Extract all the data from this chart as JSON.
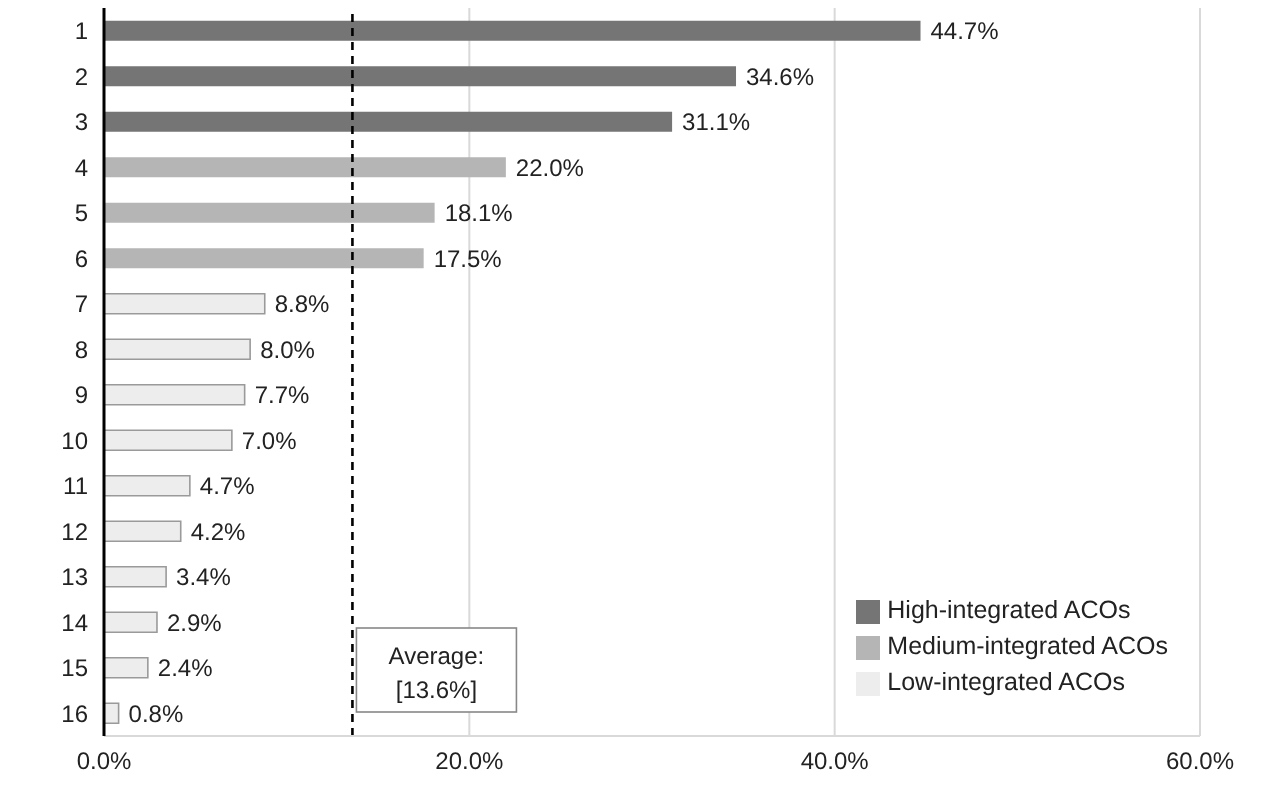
{
  "chart_data": {
    "type": "bar",
    "orientation": "horizontal",
    "stacked": true,
    "categories": [
      "1",
      "2",
      "3",
      "4",
      "5",
      "6",
      "7",
      "8",
      "9",
      "10",
      "11",
      "12",
      "13",
      "14",
      "15",
      "16"
    ],
    "series": [
      {
        "name": "High-integrated ACOs",
        "color": "#757575",
        "values": [
          44.7,
          34.6,
          31.1,
          null,
          null,
          null,
          null,
          null,
          null,
          null,
          null,
          null,
          null,
          null,
          null,
          null
        ],
        "value_labels": [
          "44.7%",
          "34.6%",
          "31.1%",
          null,
          null,
          null,
          null,
          null,
          null,
          null,
          null,
          null,
          null,
          null,
          null,
          null
        ]
      },
      {
        "name": "Medium-integrated ACOs",
        "color": "#b5b5b5",
        "values": [
          null,
          null,
          null,
          22.0,
          18.1,
          17.5,
          null,
          null,
          null,
          null,
          null,
          null,
          null,
          null,
          null,
          null
        ],
        "value_labels": [
          null,
          null,
          null,
          "22.0%",
          "18.1%",
          "17.5%",
          null,
          null,
          null,
          null,
          null,
          null,
          null,
          null,
          null,
          null
        ]
      },
      {
        "name": "Low-integrated ACOs",
        "color": "#ededed",
        "values": [
          null,
          null,
          null,
          null,
          null,
          null,
          8.8,
          8.0,
          7.7,
          7.0,
          4.7,
          4.2,
          3.4,
          2.9,
          2.4,
          0.8
        ],
        "value_labels": [
          null,
          null,
          null,
          null,
          null,
          null,
          "8.8%",
          "8.0%",
          "7.7%",
          "7.0%",
          "4.7%",
          "4.2%",
          "3.4%",
          "2.9%",
          "2.4%",
          "0.8%"
        ]
      }
    ],
    "xlim": [
      0,
      60
    ],
    "xticks": [
      {
        "value": 0,
        "label": "0.0%"
      },
      {
        "value": 20,
        "label": "20.0%"
      },
      {
        "value": 40,
        "label": "40.0%"
      },
      {
        "value": 60,
        "label": "60.0%"
      }
    ],
    "grid": "x",
    "legend": "bottom right",
    "ref_lines": [
      {
        "axis": "x",
        "value": 13.6,
        "label": "Average:\n[13.6%]",
        "line_style": "dashed",
        "color": "#000000"
      }
    ]
  }
}
